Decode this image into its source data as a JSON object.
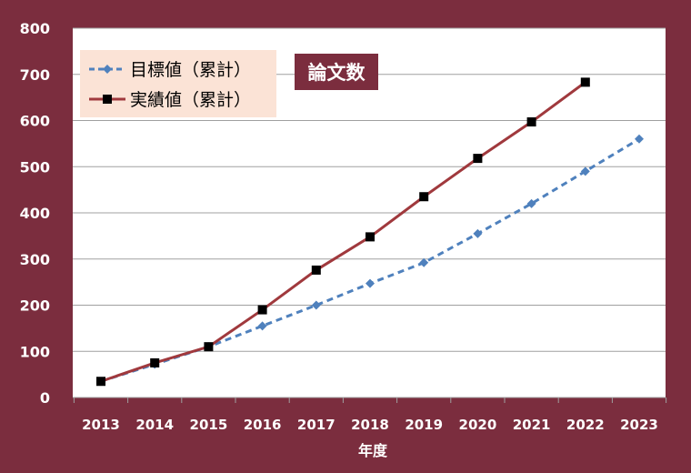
{
  "colors": {
    "frame": "#7B2D3E",
    "plot_background": "#FFFFFF",
    "gridline": "#A0A0A0",
    "axis_text": "#FFFFFF",
    "legend_background": "#FBE3D6",
    "badge_background": "#7B2D3E",
    "badge_text": "#FFFFFF",
    "target_series": "#4F81BD",
    "actual_series": "#A0393D",
    "actual_marker": "#000000"
  },
  "chart_data": {
    "type": "line",
    "title": "論文数",
    "xlabel": "年度",
    "ylabel": "",
    "x": [
      2013,
      2014,
      2015,
      2016,
      2017,
      2018,
      2019,
      2020,
      2021,
      2022,
      2023
    ],
    "ylim": [
      0,
      800
    ],
    "yticks": [
      0,
      100,
      200,
      300,
      400,
      500,
      600,
      700,
      800
    ],
    "grid": true,
    "legend_position": "top-left",
    "series": [
      {
        "name": "目標値（累計）",
        "style": "dashed",
        "marker": "diamond",
        "values": [
          35,
          72,
          110,
          155,
          200,
          247,
          292,
          355,
          420,
          490,
          560
        ]
      },
      {
        "name": "実績値（累計）",
        "style": "solid",
        "marker": "square",
        "values": [
          35,
          75,
          110,
          190,
          276,
          348,
          435,
          518,
          597,
          683,
          null
        ]
      }
    ]
  }
}
